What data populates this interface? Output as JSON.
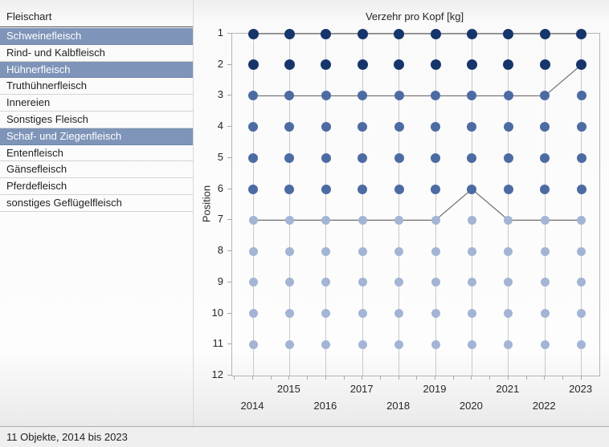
{
  "sidebar": {
    "title": "Fleischart",
    "items": [
      {
        "label": "Schweinefleisch",
        "selected": true
      },
      {
        "label": "Rind- und Kalbfleisch",
        "selected": false
      },
      {
        "label": "Hühnerfleisch",
        "selected": true
      },
      {
        "label": "Truthühnerfleisch",
        "selected": false
      },
      {
        "label": "Innereien",
        "selected": false
      },
      {
        "label": "Sonstiges Fleisch",
        "selected": false
      },
      {
        "label": "Schaf- und Ziegenfleisch",
        "selected": true
      },
      {
        "label": "Entenfleisch",
        "selected": false
      },
      {
        "label": "Gänsefleisch",
        "selected": false
      },
      {
        "label": "Pferdefleisch",
        "selected": false
      },
      {
        "label": "sonstiges Geflügelfleisch",
        "selected": false
      }
    ]
  },
  "statusbar": {
    "text": "11 Objekte, 2014 bis 2023"
  },
  "chart_data": {
    "type": "scatter",
    "subtype": "bump-ranking-chart",
    "title": "Verzehr pro Kopf [kg]",
    "xlabel": "",
    "ylabel": "Position",
    "x": [
      2014,
      2015,
      2016,
      2017,
      2018,
      2019,
      2020,
      2021,
      2022,
      2023
    ],
    "y_ticks": [
      1,
      2,
      3,
      4,
      5,
      6,
      7,
      8,
      9,
      10,
      11,
      12
    ],
    "ylim": [
      1,
      12
    ],
    "y_inverted": true,
    "grid": "vertical-only",
    "legend": "none",
    "positions_filled_each_year": [
      1,
      2,
      3,
      4,
      5,
      6,
      7,
      8,
      9,
      10,
      11
    ],
    "series": [
      {
        "name": "Schweinefleisch",
        "positions": [
          1,
          1,
          1,
          1,
          1,
          1,
          1,
          1,
          1,
          1
        ]
      },
      {
        "name": "Hühnerfleisch",
        "positions": [
          3,
          3,
          3,
          3,
          3,
          3,
          3,
          3,
          3,
          2
        ]
      },
      {
        "name": "Schaf- und Ziegenfleisch",
        "positions": [
          7,
          7,
          7,
          7,
          7,
          7,
          6,
          7,
          7,
          7
        ]
      }
    ],
    "dot_color_by_position": {
      "1": "#16356a",
      "2": "#16356a",
      "3": "#4d6ba3",
      "4": "#4d6ba3",
      "5": "#4d6ba3",
      "6": "#4d6ba3",
      "7": "#a3b4d4",
      "8": "#a3b4d4",
      "9": "#a3b4d4",
      "10": "#a3b4d4",
      "11": "#a3b4d4"
    },
    "colors": {
      "series_line": "#6e6e6e",
      "gridline": "#c9c9c9",
      "plot_border": "#b4b4b4",
      "selected_row_bg": "#7e94b8"
    }
  }
}
